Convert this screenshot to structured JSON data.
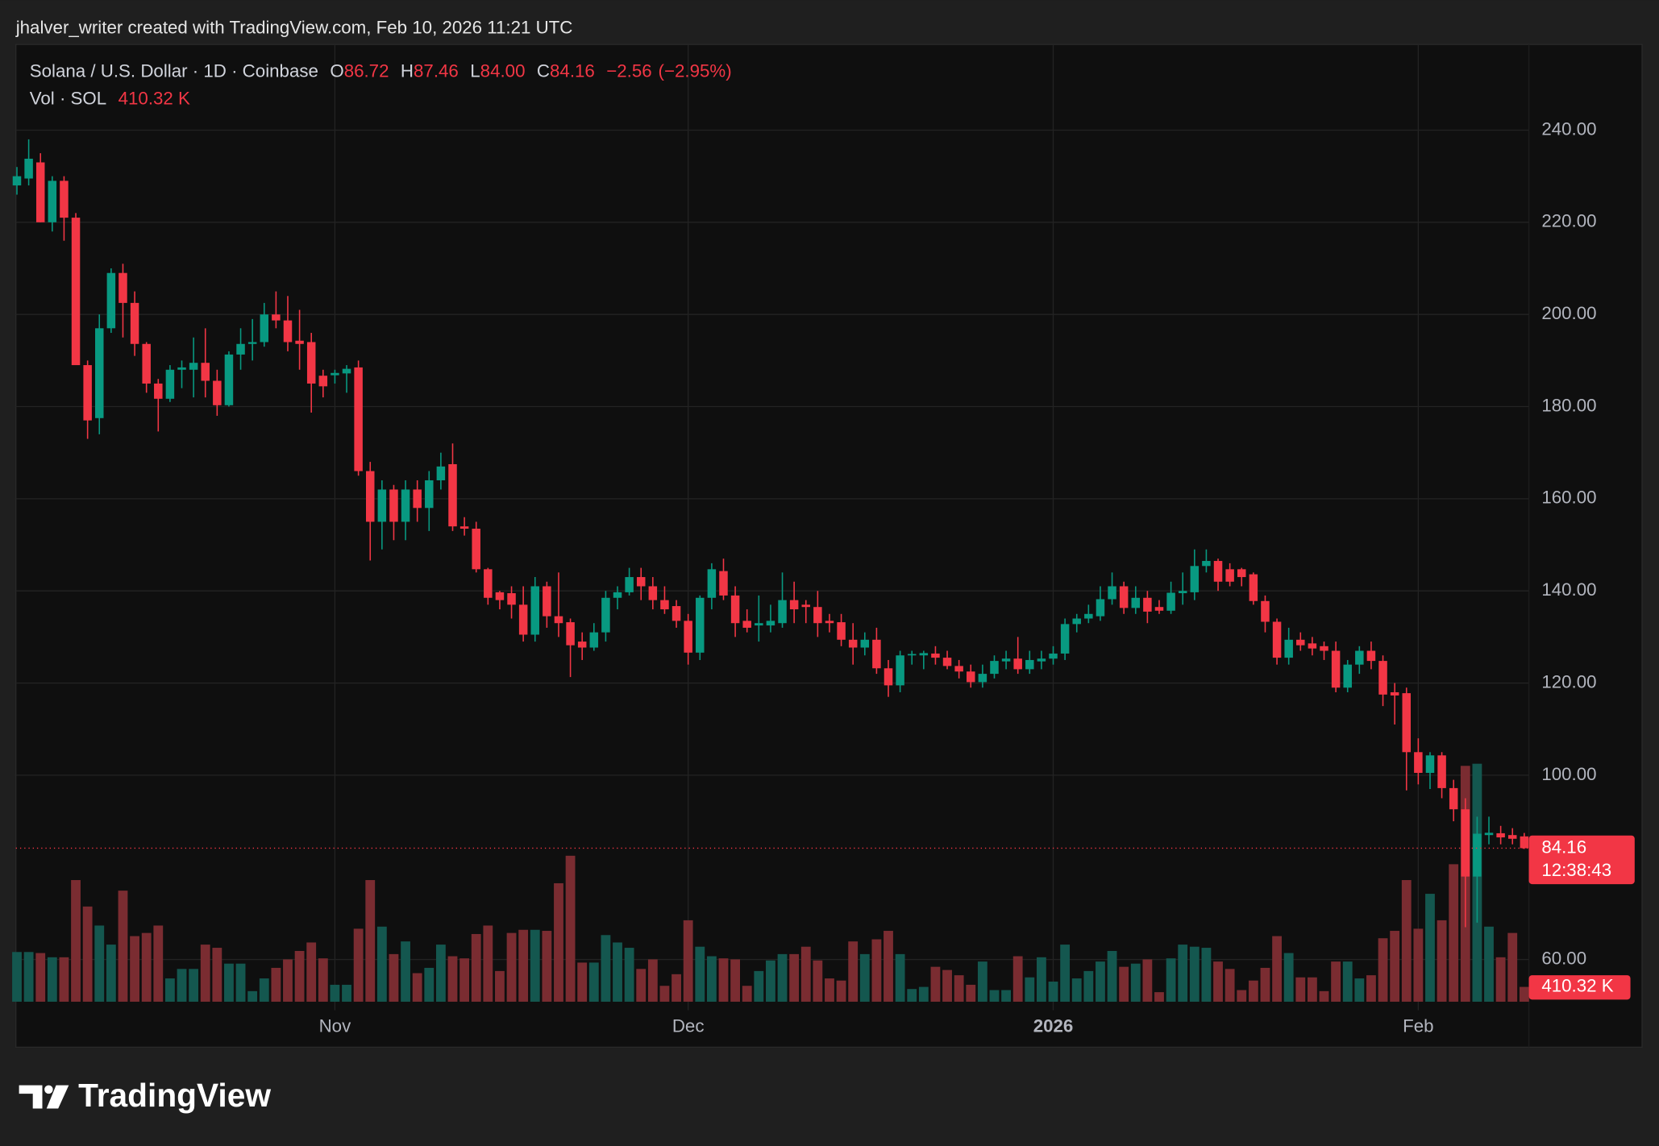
{
  "chart_data": {
    "type": "candlestick",
    "attribution": "jhalver_writer created with TradingView.com, Feb 10, 2026 11:21 UTC",
    "title": "Solana / U.S. Dollar · 1D · Coinbase",
    "ohlc_legend": {
      "open_key": "O",
      "open": 86.72,
      "high_key": "H",
      "high": 87.46,
      "low_key": "L",
      "low": {
        "value": 84,
        "label": "84.00"
      },
      "close_key": "C",
      "close": 84.16,
      "change": {
        "value": -2.56,
        "label": "−2.56"
      },
      "change_pct": {
        "value": -2.95,
        "label": "(−2.95%)"
      }
    },
    "volume_legend": {
      "name": "Vol · SOL",
      "value": {
        "value": 410320,
        "label": "410.32 K"
      }
    },
    "brand": "TradingView",
    "up_color": "#089981",
    "down_color": "#f23645",
    "volume_up_color": "#14574f",
    "volume_down_color": "#7a2c31",
    "grid": true,
    "open": [
      228,
      229.5,
      233,
      220,
      229,
      221,
      189,
      177.5,
      197,
      209,
      202.5,
      193.6,
      185,
      181.7,
      188,
      188,
      189.5,
      185.6,
      180.3,
      191.3,
      193.6,
      194,
      200,
      198.7,
      194.3,
      194,
      186.7,
      186.8,
      187.2,
      188.5,
      166,
      155,
      162,
      155,
      162,
      158,
      164,
      167.5,
      154,
      153.5,
      144.7,
      139.7,
      139.5,
      137,
      130.5,
      141,
      134.5,
      133.2,
      129,
      127.7,
      131,
      138.5,
      139.7,
      143,
      141,
      138,
      136.7,
      133.5,
      126.6,
      138.5,
      144.3,
      139,
      133.5,
      132.5,
      132.5,
      133,
      138,
      137,
      136.5,
      133.5,
      133.2,
      129.4,
      127.7,
      129.4,
      123.2,
      119.5,
      126,
      126,
      126.4,
      125.5,
      123.7,
      122.5,
      120.2,
      122,
      124.7,
      125.3,
      123,
      124.7,
      125.3,
      126.4,
      132.8,
      134,
      134.5,
      138.2,
      141,
      136.3,
      138.5,
      136.5,
      135.7,
      139.5,
      139.7,
      145.4,
      146.5,
      144.7,
      144.7,
      143.6,
      137.8,
      133.3,
      125.5,
      129.4,
      128.6,
      128,
      127,
      119,
      124,
      127,
      124.8,
      118,
      117.8,
      105,
      100.5,
      104.3,
      97.2,
      92.6,
      78,
      87,
      87.4,
      87,
      86.72
    ],
    "high": [
      232,
      238,
      235,
      230,
      230,
      222,
      190,
      200,
      210,
      211,
      205,
      194,
      186,
      189,
      190,
      195,
      197,
      188,
      192,
      197,
      199,
      202.5,
      205,
      204,
      201,
      196,
      188,
      188,
      189,
      190,
      168,
      164,
      163,
      164,
      164,
      166,
      170,
      172,
      156,
      155,
      145,
      140,
      141,
      141,
      143,
      142,
      144,
      134,
      131,
      133,
      140,
      141,
      145,
      145,
      143,
      141,
      138,
      135,
      139,
      146,
      147,
      141,
      136,
      139,
      137,
      144,
      142,
      138,
      140,
      135,
      135,
      133,
      131,
      132,
      125,
      127,
      127,
      127,
      128,
      127,
      125,
      124,
      124,
      126,
      127,
      130,
      127,
      127,
      128,
      134,
      135,
      137,
      141,
      144,
      142,
      141,
      140,
      138,
      142,
      144,
      149,
      149,
      147,
      146,
      145,
      144,
      139,
      134,
      132,
      131,
      130,
      129,
      129,
      125,
      128,
      129,
      126,
      120,
      119,
      108,
      105,
      105,
      99,
      95,
      91,
      91,
      89,
      88.5,
      87.46
    ],
    "low": [
      226,
      228,
      220,
      218,
      216,
      189,
      173,
      174,
      196,
      195,
      191,
      183,
      174.6,
      181,
      184,
      182,
      182,
      178,
      180,
      188,
      190,
      193,
      197,
      192,
      188,
      178.7,
      182,
      185,
      183,
      165,
      146.6,
      149,
      151,
      151,
      155,
      153,
      162,
      153,
      152,
      144,
      137,
      136,
      134,
      129,
      129,
      132,
      130,
      121.3,
      125,
      127,
      129,
      136,
      139,
      138,
      136,
      135,
      132,
      124,
      125,
      136,
      138,
      130,
      131,
      129,
      131,
      132,
      133,
      133,
      130,
      131,
      128,
      124,
      126,
      122,
      117,
      118,
      124,
      123,
      124,
      123,
      121,
      119,
      119,
      121,
      123,
      122,
      122,
      123,
      124,
      125,
      131,
      133,
      133.5,
      137,
      135,
      135,
      133,
      135,
      135,
      137,
      138,
      144,
      140,
      141,
      141,
      137,
      131,
      124,
      124,
      127,
      126,
      125,
      118,
      118,
      122,
      123,
      115,
      111,
      96.7,
      98,
      97,
      95,
      90,
      67,
      68,
      85,
      85,
      85,
      84
    ],
    "close": [
      230,
      233.8,
      220,
      229,
      221,
      189,
      177,
      197,
      209,
      202.5,
      193.6,
      185,
      181.7,
      188,
      188.5,
      189.5,
      185.6,
      180.3,
      191.3,
      193.6,
      194,
      200,
      198.7,
      194,
      193.6,
      185,
      184.4,
      187.3,
      188.2,
      166,
      155,
      162,
      155,
      162,
      158,
      164,
      167,
      154,
      153.5,
      144.7,
      138.5,
      138,
      137,
      130.5,
      141,
      134.5,
      133,
      128.2,
      127.7,
      131,
      138.5,
      139.7,
      143,
      141,
      138,
      136,
      133.5,
      126.6,
      138.5,
      144.7,
      139,
      133,
      132,
      133,
      133.5,
      138,
      136,
      136.5,
      133,
      133,
      129.4,
      127.7,
      129.4,
      123.2,
      119.5,
      126,
      126.3,
      126.5,
      125.5,
      123.7,
      122.5,
      120.2,
      122,
      124.8,
      125.3,
      123,
      125,
      125.3,
      126.4,
      132.8,
      134,
      135,
      138.2,
      141,
      136.3,
      138.5,
      135.5,
      135.7,
      139.6,
      140,
      145.4,
      146.5,
      142,
      142,
      143,
      137.8,
      133.3,
      125.5,
      129.4,
      128.2,
      127.5,
      127,
      119,
      124,
      127,
      124.8,
      117.5,
      117.3,
      105,
      100.5,
      104.3,
      97.2,
      92.6,
      78,
      87.3,
      87.5,
      86.5,
      86.2,
      84.16
    ],
    "volume": [
      1377000,
      1377000,
      1348000,
      1231000,
      1231000,
      3370000,
      2637000,
      2110000,
      1582000,
      3077000,
      1817000,
      1905000,
      2110000,
      645000,
      908000,
      908000,
      1582000,
      1494000,
      1055000,
      1055000,
      293000,
      645000,
      938000,
      1172000,
      1406000,
      1641000,
      1201000,
      469000,
      469000,
      2022000,
      3370000,
      2080000,
      1319000,
      1670000,
      791000,
      938000,
      1582000,
      1260000,
      1201000,
      1875000,
      2110000,
      850000,
      1905000,
      1992000,
      1992000,
      1963000,
      3282000,
      4044000,
      1084000,
      1084000,
      1846000,
      1641000,
      1494000,
      908000,
      1172000,
      440000,
      762000,
      2256000,
      1524000,
      1260000,
      1201000,
      1172000,
      440000,
      850000,
      1143000,
      1319000,
      1319000,
      1524000,
      1143000,
      645000,
      586000,
      1670000,
      1319000,
      1729000,
      1963000,
      1319000,
      352000,
      410000,
      967000,
      879000,
      733000,
      469000,
      1113000,
      322000,
      322000,
      1260000,
      674000,
      1231000,
      557000,
      1582000,
      645000,
      850000,
      1113000,
      1406000,
      967000,
      1055000,
      1172000,
      264000,
      1201000,
      1582000,
      1524000,
      1494000,
      1113000,
      908000,
      322000,
      586000,
      938000,
      1817000,
      1348000,
      674000,
      674000,
      293000,
      1113000,
      1113000,
      645000,
      733000,
      1758000,
      1963000,
      3370000,
      2022000,
      2989000,
      2256000,
      3809000,
      6534000,
      6593000,
      2080000,
      1231000,
      1905000,
      410320
    ],
    "ylim": [
      49,
      258.6
    ],
    "yticks": [
      {
        "value": 240,
        "label": "240.00"
      },
      {
        "value": 220,
        "label": "220.00"
      },
      {
        "value": 200,
        "label": "200.00"
      },
      {
        "value": 180,
        "label": "180.00"
      },
      {
        "value": 160,
        "label": "160.00"
      },
      {
        "value": 140,
        "label": "140.00"
      },
      {
        "value": 120,
        "label": "120.00"
      },
      {
        "value": 100,
        "label": "100.00"
      },
      {
        "value": 60,
        "label": "60.00"
      }
    ],
    "y2lim": [
      0,
      26520000
    ],
    "xticks": [
      {
        "value": 27,
        "label": "Nov"
      },
      {
        "value": 57,
        "label": "Dec"
      },
      {
        "value": 88,
        "label": "2026"
      },
      {
        "value": 119,
        "label": "Feb"
      }
    ],
    "last_price": 84.16,
    "countdown": "12:38:43"
  }
}
